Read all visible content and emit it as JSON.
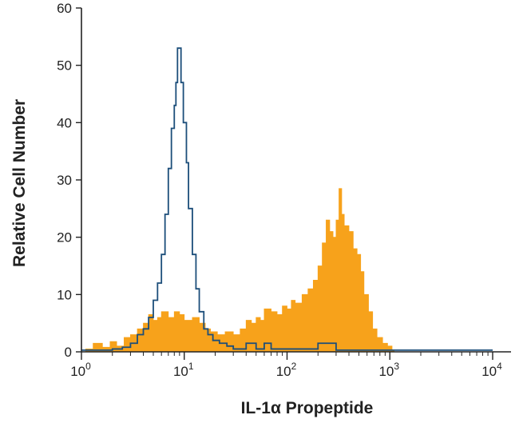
{
  "chart_data": {
    "type": "histogram",
    "xlabel": "IL-1α Propeptide",
    "ylabel": "Relative Cell Number",
    "x_scale": "log",
    "xlim": [
      1,
      10000
    ],
    "ylim": [
      0,
      60
    ],
    "x_ticks": [
      {
        "base": "10",
        "exp": "0",
        "value": 1
      },
      {
        "base": "10",
        "exp": "1",
        "value": 10
      },
      {
        "base": "10",
        "exp": "2",
        "value": 100
      },
      {
        "base": "10",
        "exp": "3",
        "value": 1000
      },
      {
        "base": "10",
        "exp": "4",
        "value": 10000
      }
    ],
    "y_ticks": [
      "0",
      "10",
      "20",
      "30",
      "40",
      "50",
      "60"
    ],
    "grid": false,
    "legend": "none",
    "series": [
      {
        "style": "filled",
        "color": "#F7A21B",
        "points": [
          [
            1.0,
            0
          ],
          [
            1.1,
            0.5
          ],
          [
            1.3,
            1.5
          ],
          [
            1.6,
            0.8
          ],
          [
            1.9,
            1.8
          ],
          [
            2.2,
            1.0
          ],
          [
            2.6,
            2.5
          ],
          [
            3.0,
            3.0
          ],
          [
            3.5,
            4.0
          ],
          [
            4.0,
            5.0
          ],
          [
            4.5,
            6.5
          ],
          [
            5.0,
            5.5
          ],
          [
            5.5,
            6.0
          ],
          [
            6.0,
            7.0
          ],
          [
            7.0,
            6.0
          ],
          [
            8.0,
            7.0
          ],
          [
            9.0,
            6.5
          ],
          [
            10,
            5.5
          ],
          [
            12,
            6.0
          ],
          [
            14,
            5.0
          ],
          [
            16,
            4.0
          ],
          [
            18,
            3.5
          ],
          [
            21,
            3.0
          ],
          [
            25,
            3.5
          ],
          [
            30,
            3.0
          ],
          [
            35,
            4.0
          ],
          [
            40,
            5.5
          ],
          [
            45,
            5.0
          ],
          [
            50,
            6.0
          ],
          [
            55,
            5.5
          ],
          [
            60,
            7.5
          ],
          [
            70,
            7.0
          ],
          [
            80,
            6.5
          ],
          [
            90,
            8.0
          ],
          [
            100,
            7.5
          ],
          [
            110,
            9.0
          ],
          [
            120,
            8.5
          ],
          [
            140,
            10.0
          ],
          [
            160,
            11.0
          ],
          [
            180,
            12.5
          ],
          [
            200,
            15.0
          ],
          [
            220,
            19.0
          ],
          [
            240,
            23.0
          ],
          [
            260,
            21.0
          ],
          [
            280,
            20.0
          ],
          [
            300,
            23.0
          ],
          [
            320,
            28.5
          ],
          [
            340,
            24.0
          ],
          [
            360,
            22.0
          ],
          [
            400,
            21.0
          ],
          [
            440,
            18.0
          ],
          [
            480,
            17.0
          ],
          [
            520,
            14.0
          ],
          [
            560,
            10.0
          ],
          [
            620,
            7.0
          ],
          [
            680,
            4.0
          ],
          [
            750,
            2.5
          ],
          [
            850,
            1.5
          ],
          [
            950,
            1.0
          ],
          [
            1050,
            0.3
          ],
          [
            1100,
            0
          ]
        ]
      },
      {
        "style": "outline",
        "color": "#1C4E7A",
        "points": [
          [
            1.0,
            0.3
          ],
          [
            1.5,
            0.3
          ],
          [
            2.0,
            0.5
          ],
          [
            2.5,
            0.8
          ],
          [
            3.0,
            1.5
          ],
          [
            3.5,
            3.0
          ],
          [
            4.0,
            4.0
          ],
          [
            4.5,
            6.0
          ],
          [
            5.0,
            9.0
          ],
          [
            5.5,
            12.0
          ],
          [
            6.0,
            17.0
          ],
          [
            6.5,
            24.0
          ],
          [
            7.0,
            32.0
          ],
          [
            7.5,
            39.0
          ],
          [
            8.0,
            43.0
          ],
          [
            8.3,
            47.0
          ],
          [
            8.6,
            53.0
          ],
          [
            8.9,
            53.0
          ],
          [
            9.3,
            47.0
          ],
          [
            9.8,
            40.0
          ],
          [
            10.5,
            33.0
          ],
          [
            11.0,
            25.0
          ],
          [
            12.0,
            17.0
          ],
          [
            13.0,
            11.0
          ],
          [
            14.0,
            7.0
          ],
          [
            15.5,
            4.0
          ],
          [
            17.0,
            3.0
          ],
          [
            19.0,
            2.0
          ],
          [
            22.0,
            1.5
          ],
          [
            26.0,
            1.0
          ],
          [
            30.0,
            0.5
          ],
          [
            40.0,
            1.5
          ],
          [
            50.0,
            0.5
          ],
          [
            60.0,
            1.5
          ],
          [
            70.0,
            0.5
          ],
          [
            100.0,
            0.5
          ],
          [
            150.0,
            0.5
          ],
          [
            200.0,
            1.5
          ],
          [
            300.0,
            0.3
          ],
          [
            1000,
            0.3
          ],
          [
            10000,
            0.3
          ]
        ]
      }
    ]
  }
}
